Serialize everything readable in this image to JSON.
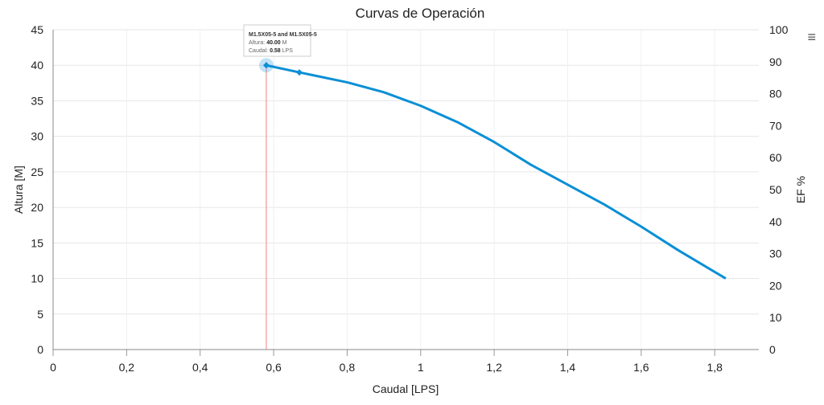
{
  "chart_data": {
    "type": "line",
    "title": "Curvas de Operación",
    "xlabel": "Caudal [LPS]",
    "ylabel": "Altura [M]",
    "y2label": "EF %",
    "xlim": [
      0,
      1.92
    ],
    "ylim": [
      0,
      45
    ],
    "y2lim": [
      0,
      100
    ],
    "xticks": [
      "0",
      "0,2",
      "0,4",
      "0,6",
      "0,8",
      "1",
      "1,2",
      "1,4",
      "1,6",
      "1,8"
    ],
    "yticks": [
      "0",
      "5",
      "10",
      "15",
      "20",
      "25",
      "30",
      "35",
      "40",
      "45"
    ],
    "y2ticks": [
      "0",
      "10",
      "20",
      "30",
      "40",
      "50",
      "60",
      "70",
      "80",
      "90",
      "100"
    ],
    "grid": true,
    "series": [
      {
        "name": "M1.5X05-5",
        "color": "#0a8fd6",
        "x": [
          0.58,
          0.67,
          0.8,
          0.9,
          1.0,
          1.1,
          1.2,
          1.3,
          1.4,
          1.5,
          1.6,
          1.7,
          1.83
        ],
        "y": [
          40.0,
          39.0,
          37.6,
          36.2,
          34.3,
          32.0,
          29.2,
          26.0,
          23.2,
          20.4,
          17.3,
          14.0,
          10.0
        ]
      }
    ],
    "markers": [
      {
        "x": 0.58,
        "y": 40.0
      },
      {
        "x": 0.67,
        "y": 39.0
      }
    ],
    "crosshair_x": 0.58,
    "crosshair_color": "#f08080",
    "tooltip": {
      "title": "M1.5X05-5 and M1.5X05-5",
      "altura_label": "Altura:",
      "altura_value": "40.00",
      "altura_unit": "M",
      "caudal_label": "Caudal:",
      "caudal_value": "0.58",
      "caudal_unit": "LPS"
    }
  },
  "menu": {
    "icon": "hamburger-icon",
    "glyph": "≡"
  }
}
